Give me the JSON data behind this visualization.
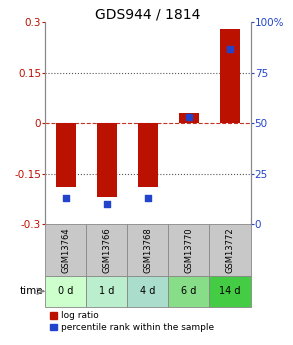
{
  "title": "GDS944 / 1814",
  "categories": [
    "GSM13764",
    "GSM13766",
    "GSM13768",
    "GSM13770",
    "GSM13772"
  ],
  "time_labels": [
    "0 d",
    "1 d",
    "4 d",
    "6 d",
    "14 d"
  ],
  "log_ratio": [
    -0.19,
    -0.22,
    -0.19,
    0.03,
    0.28
  ],
  "percentile_rank": [
    13,
    10,
    13,
    53,
    87
  ],
  "ylim_left": [
    -0.3,
    0.3
  ],
  "ylim_right": [
    0,
    100
  ],
  "yticks_left": [
    -0.3,
    -0.15,
    0,
    0.15,
    0.3
  ],
  "yticks_right": [
    0,
    25,
    50,
    75,
    100
  ],
  "ytick_labels_right": [
    "0",
    "25",
    "50",
    "75",
    "100%"
  ],
  "hlines": [
    -0.15,
    0.0,
    0.15
  ],
  "bar_color": "#bb1100",
  "marker_color": "#2244cc",
  "gsm_bg_color": "#c8c8c8",
  "time_bg_colors": [
    "#ccffcc",
    "#bbeecc",
    "#aaddcc",
    "#88dd88",
    "#44cc44"
  ],
  "legend_items": [
    "log ratio",
    "percentile rank within the sample"
  ],
  "bar_width": 0.5,
  "title_fontsize": 10,
  "axis_fontsize": 7.5
}
